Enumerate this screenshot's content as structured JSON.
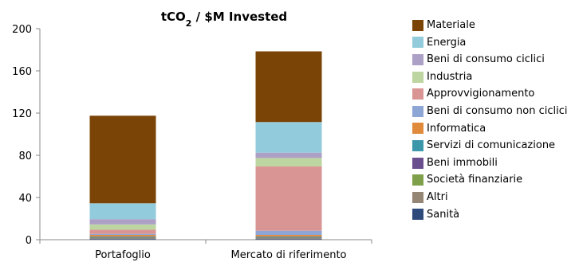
{
  "chart_data": {
    "type": "bar",
    "stacked": true,
    "title": "tCO2 / $M Invested",
    "title_main": "tCO",
    "title_sub": "2",
    "title_rest": " / $M Invested",
    "categories": [
      "Portafoglio",
      "Mercato di riferimento"
    ],
    "ylim": [
      0,
      200
    ],
    "yticks": [
      "0",
      "40",
      "80",
      "120",
      "160",
      "200"
    ],
    "ytick_values": [
      0,
      40,
      80,
      120,
      160,
      200
    ],
    "legend_position": "right",
    "grid": false,
    "series": [
      {
        "name": "Sanità",
        "color": "#2E4A7A",
        "values": [
          1,
          1
        ]
      },
      {
        "name": "Altri",
        "color": "#958574",
        "values": [
          0.5,
          0.5
        ]
      },
      {
        "name": "Società finanziarie",
        "color": "#7EA04A",
        "values": [
          0.5,
          0.5
        ]
      },
      {
        "name": "Beni immobili",
        "color": "#6B4E8E",
        "values": [
          0.5,
          0.5
        ]
      },
      {
        "name": "Servizi di comunicazione",
        "color": "#3D97AA",
        "values": [
          0.5,
          0.5
        ]
      },
      {
        "name": "Informatica",
        "color": "#E08A3C",
        "values": [
          1.5,
          1.5
        ]
      },
      {
        "name": "Beni di consumo non ciclici",
        "color": "#8EA6D6",
        "values": [
          1,
          4
        ]
      },
      {
        "name": "Approvvigionamento",
        "color": "#D99594",
        "values": [
          4,
          61
        ]
      },
      {
        "name": "Industria",
        "color": "#BDD5A0",
        "values": [
          5,
          8
        ]
      },
      {
        "name": "Beni di consumo ciclici",
        "color": "#ACA0C6",
        "values": [
          5,
          5
        ]
      },
      {
        "name": "Energia",
        "color": "#92CBDB",
        "values": [
          15,
          29
        ]
      },
      {
        "name": "Materiale",
        "color": "#7B4407",
        "values": [
          83,
          67
        ]
      }
    ]
  }
}
